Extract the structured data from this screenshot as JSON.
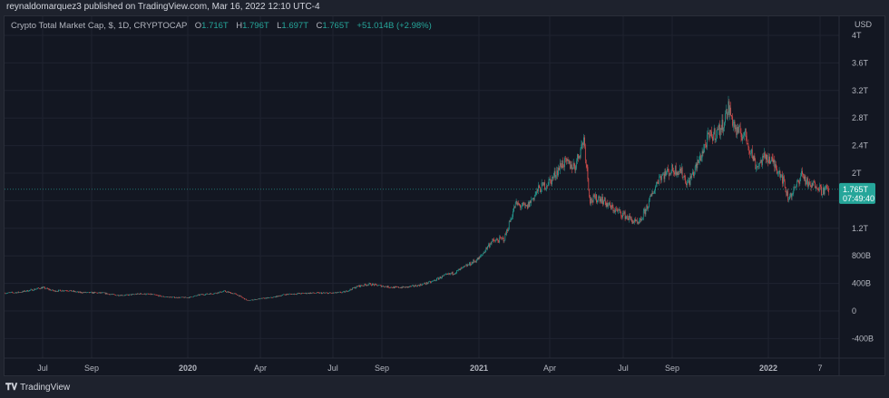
{
  "publisher_line": "reynaldomarquez3 published on TradingView.com, Mar 16, 2022 12:10 UTC-4",
  "legend": {
    "symbol": "Crypto Total Market Cap, $, 1D, CRYPTOCAP",
    "o_label": "O",
    "o": "1.716T",
    "h_label": "H",
    "h": "1.796T",
    "l_label": "L",
    "l": "1.697T",
    "c_label": "C",
    "c": "1.765T",
    "change": "+51.014B (+2.98%)"
  },
  "price_axis": {
    "currency": "USD",
    "ticks": [
      "4T",
      "3.6T",
      "3.2T",
      "2.8T",
      "2.4T",
      "2T",
      "1.2T",
      "800B",
      "400B",
      "0",
      "-400B"
    ]
  },
  "last_price": {
    "value": "1.765T",
    "countdown": "07:49:40"
  },
  "time_axis": {
    "ticks": [
      "Jul",
      "Sep",
      "2020",
      "Apr",
      "Jul",
      "Sep",
      "2021",
      "Apr",
      "Jul",
      "Sep",
      "2022",
      "7"
    ]
  },
  "footer": {
    "brand": "TradingView"
  },
  "colors": {
    "up": "#26a69a",
    "down": "#ef5350",
    "background": "#131722"
  },
  "chart_data": {
    "type": "candlestick",
    "unit": "USD billions",
    "ylim": [
      -600,
      4200
    ],
    "grid": true,
    "approx_closes": [
      [
        "2019-05-15",
        260
      ],
      [
        "2019-06-01",
        270
      ],
      [
        "2019-06-15",
        300
      ],
      [
        "2019-07-01",
        340
      ],
      [
        "2019-07-15",
        290
      ],
      [
        "2019-08-01",
        300
      ],
      [
        "2019-08-15",
        270
      ],
      [
        "2019-09-01",
        265
      ],
      [
        "2019-09-15",
        260
      ],
      [
        "2019-10-01",
        230
      ],
      [
        "2019-10-15",
        230
      ],
      [
        "2019-11-01",
        250
      ],
      [
        "2019-11-15",
        240
      ],
      [
        "2019-12-01",
        205
      ],
      [
        "2019-12-15",
        195
      ],
      [
        "2020-01-01",
        195
      ],
      [
        "2020-01-15",
        235
      ],
      [
        "2020-02-01",
        255
      ],
      [
        "2020-02-15",
        285
      ],
      [
        "2020-03-01",
        240
      ],
      [
        "2020-03-15",
        150
      ],
      [
        "2020-04-01",
        180
      ],
      [
        "2020-04-15",
        195
      ],
      [
        "2020-05-01",
        240
      ],
      [
        "2020-05-15",
        250
      ],
      [
        "2020-06-01",
        260
      ],
      [
        "2020-06-15",
        260
      ],
      [
        "2020-07-01",
        260
      ],
      [
        "2020-07-15",
        275
      ],
      [
        "2020-08-01",
        360
      ],
      [
        "2020-08-15",
        390
      ],
      [
        "2020-09-01",
        360
      ],
      [
        "2020-09-15",
        340
      ],
      [
        "2020-10-01",
        345
      ],
      [
        "2020-10-15",
        370
      ],
      [
        "2020-11-01",
        420
      ],
      [
        "2020-11-15",
        500
      ],
      [
        "2020-12-01",
        560
      ],
      [
        "2020-12-15",
        650
      ],
      [
        "2021-01-01",
        770
      ],
      [
        "2021-01-15",
        1000
      ],
      [
        "2021-02-01",
        1050
      ],
      [
        "2021-02-15",
        1550
      ],
      [
        "2021-03-01",
        1500
      ],
      [
        "2021-03-15",
        1750
      ],
      [
        "2021-04-01",
        1900
      ],
      [
        "2021-04-15",
        2150
      ],
      [
        "2021-05-01",
        2100
      ],
      [
        "2021-05-12",
        2500
      ],
      [
        "2021-05-20",
        1600
      ],
      [
        "2021-06-01",
        1650
      ],
      [
        "2021-06-15",
        1500
      ],
      [
        "2021-07-01",
        1400
      ],
      [
        "2021-07-20",
        1250
      ],
      [
        "2021-08-01",
        1550
      ],
      [
        "2021-08-15",
        1950
      ],
      [
        "2021-09-01",
        2050
      ],
      [
        "2021-09-10",
        2050
      ],
      [
        "2021-09-20",
        1850
      ],
      [
        "2021-10-01",
        2100
      ],
      [
        "2021-10-15",
        2500
      ],
      [
        "2021-11-01",
        2650
      ],
      [
        "2021-11-10",
        2950
      ],
      [
        "2021-11-20",
        2600
      ],
      [
        "2021-12-01",
        2550
      ],
      [
        "2021-12-15",
        2100
      ],
      [
        "2021-12-28",
        2250
      ],
      [
        "2022-01-05",
        2150
      ],
      [
        "2022-01-15",
        2000
      ],
      [
        "2022-01-24",
        1650
      ],
      [
        "2022-02-01",
        1750
      ],
      [
        "2022-02-10",
        2000
      ],
      [
        "2022-02-20",
        1800
      ],
      [
        "2022-03-01",
        1850
      ],
      [
        "2022-03-07",
        1750
      ],
      [
        "2022-03-16",
        1765
      ]
    ]
  }
}
